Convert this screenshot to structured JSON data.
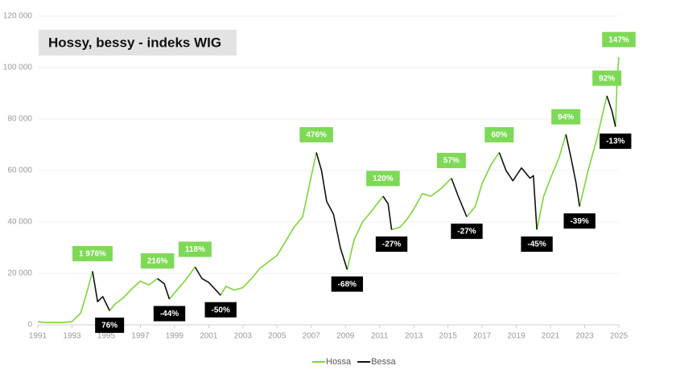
{
  "chart_data": {
    "type": "line",
    "title": "Hossy, bessy - indeks WIG",
    "x": [
      1991,
      1991.5,
      1992,
      1992.5,
      1993,
      1993.5,
      1993.8,
      1994.2,
      1994.5,
      1994.8,
      1995.2,
      1995.5,
      1996,
      1996.5,
      1997,
      1997.5,
      1998,
      1998.4,
      1998.7,
      1999.2,
      1999.6,
      2000.2,
      2000.6,
      2001,
      2001.7,
      2002,
      2002.5,
      2003,
      2003.5,
      2004,
      2005,
      2006,
      2006.5,
      2007.3,
      2007.6,
      2007.9,
      2008.3,
      2008.7,
      2009.1,
      2009.5,
      2010,
      2010.5,
      2011.2,
      2011.5,
      2011.7,
      2012.2,
      2012.6,
      2013,
      2013.5,
      2014,
      2014.6,
      2015.2,
      2015.6,
      2016.1,
      2016.6,
      2017,
      2017.5,
      2018,
      2018.4,
      2018.8,
      2019.3,
      2019.8,
      2020,
      2020.2,
      2020.6,
      2021,
      2021.5,
      2021.9,
      2022.2,
      2022.5,
      2022.7,
      2023.2,
      2023.7,
      2024.3,
      2024.6,
      2024.8,
      2024.9,
      2025
    ],
    "series": [
      {
        "name": "Hossa",
        "color": "#7ed43a",
        "label_color": "#7ed957",
        "values": [
          1200,
          900,
          1000,
          900,
          1300,
          4500,
          11000,
          20800,
          null,
          null,
          5500,
          8000,
          10500,
          14000,
          17000,
          15500,
          18000,
          null,
          10000,
          14000,
          17000,
          22500,
          null,
          null,
          11500,
          15000,
          13500,
          14500,
          18000,
          22000,
          27000,
          38000,
          42000,
          67000,
          null,
          null,
          null,
          null,
          21500,
          33000,
          40000,
          44000,
          50000,
          null,
          37000,
          38000,
          41000,
          45000,
          51000,
          50000,
          53000,
          57000,
          null,
          42000,
          46000,
          55000,
          62000,
          67000,
          null,
          null,
          null,
          null,
          null,
          37000,
          50000,
          57000,
          65000,
          74000,
          null,
          null,
          46000,
          60000,
          72000,
          89000,
          null,
          77000,
          96000,
          104000
        ],
        "annotations": [
          {
            "x": 1994.2,
            "label": "1 976%"
          },
          {
            "x": 1998,
            "label": "216%"
          },
          {
            "x": 2000.2,
            "label": "118%"
          },
          {
            "x": 2007.3,
            "label": "476%"
          },
          {
            "x": 2011.2,
            "label": "120%"
          },
          {
            "x": 2015.2,
            "label": "57%"
          },
          {
            "x": 2018,
            "label": "60%"
          },
          {
            "x": 2021.9,
            "label": "94%"
          },
          {
            "x": 2024.3,
            "label": "92%"
          },
          {
            "x": 2025,
            "label": "147%"
          }
        ]
      },
      {
        "name": "Bessa",
        "color": "#111111",
        "label_color": "#000000",
        "values": [
          null,
          null,
          null,
          null,
          null,
          null,
          null,
          20800,
          9000,
          11000,
          5500,
          null,
          null,
          null,
          null,
          null,
          18000,
          16000,
          10000,
          null,
          null,
          22500,
          18000,
          16500,
          11500,
          null,
          null,
          null,
          null,
          null,
          null,
          null,
          null,
          67000,
          60000,
          48000,
          43000,
          30000,
          21500,
          null,
          null,
          null,
          50000,
          47000,
          37000,
          null,
          null,
          null,
          null,
          null,
          null,
          57000,
          50000,
          42000,
          null,
          null,
          null,
          67000,
          60000,
          56000,
          61000,
          57000,
          58000,
          37000,
          null,
          null,
          null,
          74000,
          65000,
          55000,
          46000,
          null,
          null,
          89000,
          83000,
          77000,
          null,
          null
        ],
        "annotations": [
          {
            "x": 1995.2,
            "label": "76%"
          },
          {
            "x": 1998.7,
            "label": "-44%"
          },
          {
            "x": 2001.7,
            "label": "-50%"
          },
          {
            "x": 2009.1,
            "label": "-68%"
          },
          {
            "x": 2011.7,
            "label": "-27%"
          },
          {
            "x": 2016.1,
            "label": "-27%"
          },
          {
            "x": 2020.2,
            "label": "-45%"
          },
          {
            "x": 2022.7,
            "label": "-39%"
          },
          {
            "x": 2024.8,
            "label": "-13%"
          }
        ]
      }
    ],
    "xlim": [
      1991,
      2025
    ],
    "xticks": [
      1991,
      1993,
      1995,
      1997,
      1999,
      2001,
      2003,
      2005,
      2007,
      2009,
      2011,
      2013,
      2015,
      2017,
      2019,
      2021,
      2023,
      2025
    ],
    "ylim": [
      0,
      120000
    ],
    "yticks": [
      0,
      {
        "value": 20000,
        "label": "20 000"
      },
      {
        "value": 40000,
        "label": "40 000"
      },
      {
        "value": 60000,
        "label": "60 000"
      },
      {
        "value": 80000,
        "label": "80 000"
      },
      {
        "value": 100000,
        "label": "100 000"
      },
      {
        "value": 120000,
        "label": "120 000"
      }
    ],
    "grid": true,
    "legend": "bottom"
  }
}
